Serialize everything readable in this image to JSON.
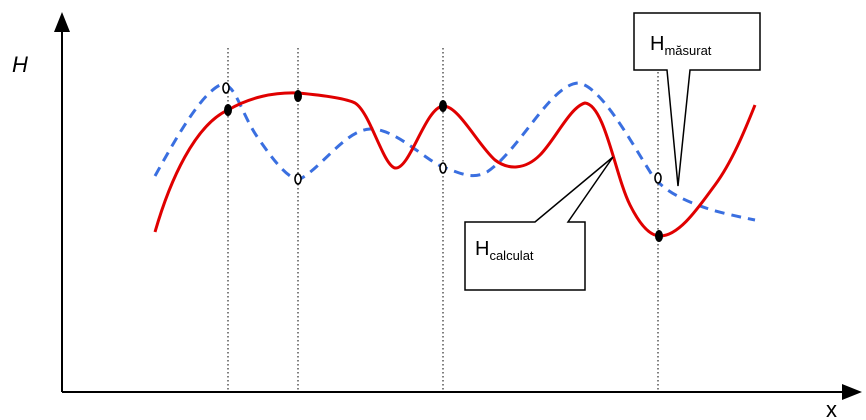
{
  "diagram": {
    "y_axis_label": "H",
    "x_axis_label": "x",
    "callout_measured": {
      "main": "H",
      "sub": "măsurat"
    },
    "callout_calculated": {
      "main": "H",
      "sub": "calculat"
    },
    "colors": {
      "calculated_curve": "#e00000",
      "measured_curve": "#3a6fe0",
      "axis": "#000000"
    }
  }
}
